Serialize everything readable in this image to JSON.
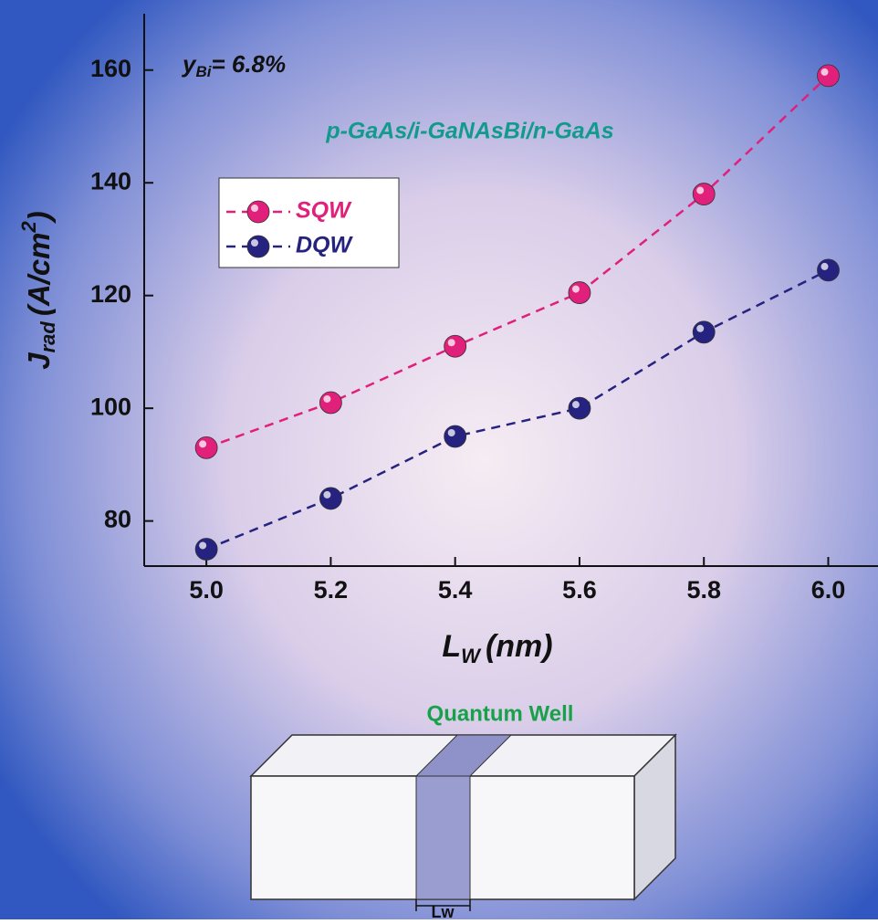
{
  "chart_data": {
    "type": "line",
    "annotation": "p-GaAs/i-GaNAsBi/n-GaAs",
    "composition_label": {
      "symbol": "y",
      "subscript": "Bi",
      "text": "= 6.8%"
    },
    "x_label": {
      "symbol": "L",
      "subscript": "W",
      "text": "(nm)"
    },
    "y_label": {
      "symbol": "J",
      "subscript": "rad",
      "text": "(A/cm",
      "superscript": "2",
      "close": ")"
    },
    "x": [
      5.0,
      5.2,
      5.4,
      5.6,
      5.8,
      6.0
    ],
    "series": [
      {
        "name": "SQW",
        "color": "#e0207a",
        "values": [
          93,
          101,
          111,
          120.5,
          138,
          159
        ]
      },
      {
        "name": "DQW",
        "color": "#25237f",
        "values": [
          75,
          84,
          95,
          100,
          113.5,
          124.5
        ]
      }
    ],
    "xlim": [
      4.9,
      6.08
    ],
    "xticks": [
      {
        "value": 5.0,
        "label": "5.0"
      },
      {
        "value": 5.2,
        "label": "5.2"
      },
      {
        "value": 5.4,
        "label": "5.4"
      },
      {
        "value": 5.6,
        "label": "5.6"
      },
      {
        "value": 5.8,
        "label": "5.8"
      },
      {
        "value": 6.0,
        "label": "6.0"
      }
    ],
    "ylim": [
      72,
      170
    ],
    "yticks": [
      80,
      100,
      120,
      140,
      160
    ],
    "grid": false,
    "legend": "upper left"
  },
  "diagram": {
    "title": "Quantum Well",
    "dimension_label": "Lw"
  }
}
